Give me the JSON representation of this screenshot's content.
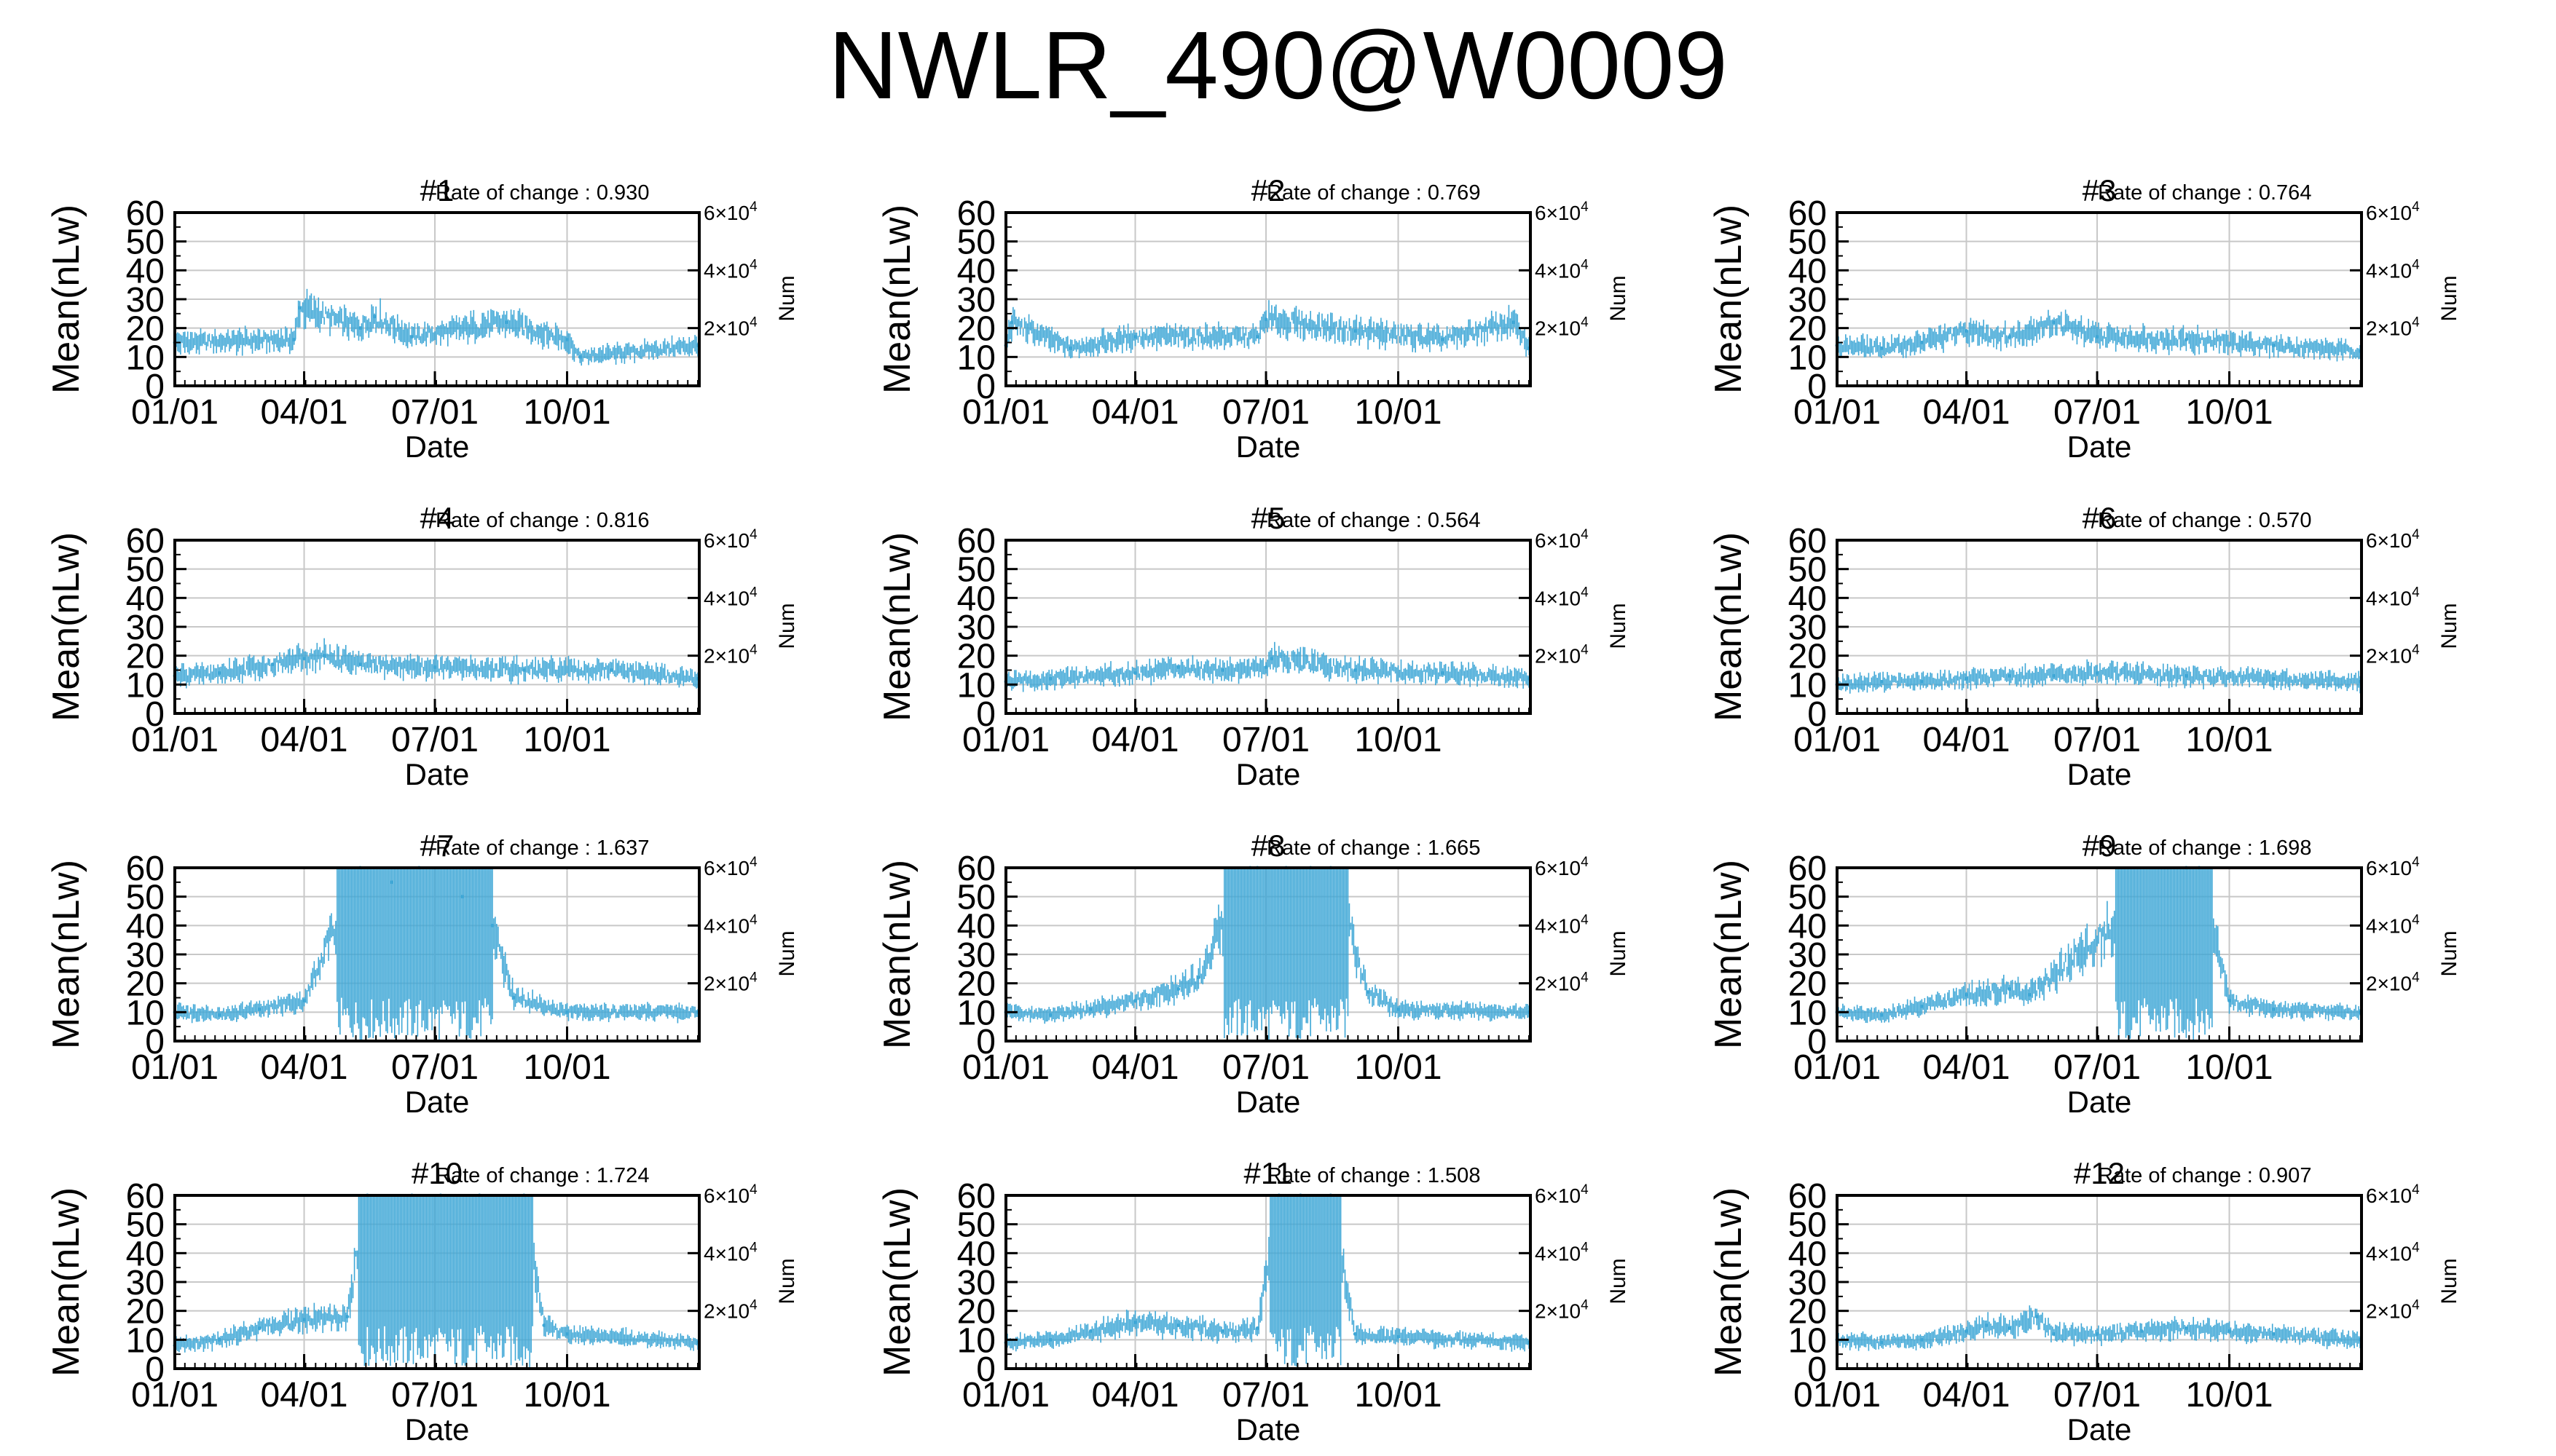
{
  "figure": {
    "title": "NWLR_490@W0009",
    "y_label": "Mean(nLw)",
    "x_label": "Date",
    "y2_label": "Num",
    "rate_prefix": "Rate of change : ",
    "y_ticks": [
      "0",
      "10",
      "20",
      "30",
      "40",
      "50",
      "60"
    ],
    "y2_ticks": [
      "2×10",
      "4×10",
      "6×10"
    ],
    "y2_tick_exp": "4",
    "x_ticks": [
      "01/01",
      "04/01",
      "07/01",
      "10/01"
    ],
    "line_color": "#3fa7d6",
    "grid_color": "#c8c8c8"
  },
  "chart_data": [
    {
      "type": "line",
      "title": "#1",
      "rate_of_change": "0.930",
      "x_range": [
        "01/01",
        "12/31"
      ],
      "ylim": [
        0,
        60
      ],
      "y2lim": [
        0,
        60000
      ],
      "grid": true,
      "series": [
        {
          "x": [
            "01/01",
            "03/25",
            "03/29",
            "05/10",
            "05/20",
            "06/15",
            "08/20",
            "10/01",
            "10/10",
            "12/31"
          ],
          "y": [
            15,
            16,
            27,
            20,
            24,
            17,
            22,
            16,
            10,
            14
          ]
        }
      ]
    },
    {
      "type": "line",
      "title": "#2",
      "rate_of_change": "0.769",
      "x_range": [
        "01/01",
        "12/31"
      ],
      "ylim": [
        0,
        60
      ],
      "y2lim": [
        0,
        60000
      ],
      "grid": true,
      "series": [
        {
          "x": [
            "01/01",
            "01/05",
            "02/15",
            "04/01",
            "06/25",
            "07/01",
            "09/01",
            "11/01",
            "12/20",
            "12/31"
          ],
          "y": [
            14,
            22,
            13,
            17,
            17,
            23,
            19,
            16,
            22,
            13
          ]
        }
      ]
    },
    {
      "type": "line",
      "title": "#3",
      "rate_of_change": "0.764",
      "x_range": [
        "01/01",
        "12/31"
      ],
      "ylim": [
        0,
        60
      ],
      "y2lim": [
        0,
        60000
      ],
      "grid": true,
      "series": [
        {
          "x": [
            "01/01",
            "02/01",
            "03/01",
            "04/01",
            "05/01",
            "06/01",
            "07/01",
            "09/01",
            "11/01",
            "12/31"
          ],
          "y": [
            14,
            13,
            15,
            19,
            17,
            22,
            17,
            16,
            14,
            12
          ]
        }
      ]
    },
    {
      "type": "line",
      "title": "#4",
      "rate_of_change": "0.816",
      "x_range": [
        "01/01",
        "12/31"
      ],
      "ylim": [
        0,
        60
      ],
      "y2lim": [
        0,
        60000
      ],
      "grid": true,
      "series": [
        {
          "x": [
            "01/01",
            "02/01",
            "03/10",
            "04/01",
            "04/15",
            "05/10",
            "07/01",
            "09/01",
            "11/01",
            "12/31"
          ],
          "y": [
            13,
            14,
            17,
            19,
            20,
            17,
            16,
            15,
            15,
            12
          ]
        }
      ]
    },
    {
      "type": "line",
      "title": "#5",
      "rate_of_change": "0.564",
      "x_range": [
        "01/01",
        "12/31"
      ],
      "ylim": [
        0,
        60
      ],
      "y2lim": [
        0,
        60000
      ],
      "grid": true,
      "series": [
        {
          "x": [
            "01/01",
            "02/01",
            "04/01",
            "05/01",
            "06/01",
            "07/01",
            "07/05",
            "09/01",
            "11/01",
            "12/31"
          ],
          "y": [
            11,
            12,
            14,
            16,
            15,
            16,
            19,
            15,
            14,
            12
          ]
        }
      ]
    },
    {
      "type": "line",
      "title": "#6",
      "rate_of_change": "0.570",
      "x_range": [
        "01/01",
        "12/31"
      ],
      "ylim": [
        0,
        60
      ],
      "y2lim": [
        0,
        60000
      ],
      "grid": true,
      "series": [
        {
          "x": [
            "01/01",
            "02/01",
            "03/01",
            "04/01",
            "05/01",
            "06/01",
            "07/01",
            "09/01",
            "11/01",
            "12/31"
          ],
          "y": [
            10,
            11,
            11,
            12,
            13,
            13,
            14,
            13,
            12,
            11
          ]
        }
      ]
    },
    {
      "type": "line",
      "title": "#7",
      "rate_of_change": "1.637",
      "x_range": [
        "01/01",
        "12/31"
      ],
      "ylim": [
        0,
        60
      ],
      "y2lim": [
        0,
        60000
      ],
      "grid": true,
      "series": [
        {
          "x": [
            "01/01",
            "02/01",
            "03/01",
            "04/01",
            "05/10",
            "06/01",
            "06/20",
            "07/20",
            "08/10",
            "08/25",
            "10/01",
            "12/31"
          ],
          "y": [
            10,
            9,
            11,
            14,
            60,
            55,
            60,
            50,
            40,
            15,
            10,
            10
          ]
        }
      ]
    },
    {
      "type": "line",
      "title": "#8",
      "rate_of_change": "1.665",
      "x_range": [
        "01/01",
        "12/31"
      ],
      "ylim": [
        0,
        60
      ],
      "y2lim": [
        0,
        60000
      ],
      "grid": true,
      "series": [
        {
          "x": [
            "01/01",
            "02/01",
            "03/01",
            "04/01",
            "05/01",
            "05/15",
            "06/20",
            "06/25",
            "07/15",
            "08/01",
            "08/15",
            "09/10",
            "10/01",
            "12/31"
          ],
          "y": [
            10,
            9,
            11,
            14,
            18,
            22,
            60,
            60,
            60,
            60,
            60,
            17,
            11,
            10
          ]
        }
      ]
    },
    {
      "type": "line",
      "title": "#9",
      "rate_of_change": "1.698",
      "x_range": [
        "01/01",
        "12/31"
      ],
      "ylim": [
        0,
        60
      ],
      "y2lim": [
        0,
        60000
      ],
      "grid": true,
      "series": [
        {
          "x": [
            "01/01",
            "02/01",
            "03/01",
            "04/01",
            "05/01",
            "05/15",
            "09/01",
            "09/10",
            "10/01",
            "11/01",
            "12/31"
          ],
          "y": [
            10,
            9,
            12,
            16,
            18,
            16,
            60,
            60,
            14,
            11,
            10
          ]
        }
      ]
    },
    {
      "type": "line",
      "title": "#10",
      "rate_of_change": "1.724",
      "x_range": [
        "01/01",
        "12/31"
      ],
      "ylim": [
        0,
        60
      ],
      "y2lim": [
        0,
        60000
      ],
      "grid": true,
      "series": [
        {
          "x": [
            "01/01",
            "02/01",
            "03/01",
            "04/01",
            "05/01",
            "05/15",
            "06/15",
            "07/05",
            "08/01",
            "09/01",
            "09/15",
            "10/01",
            "12/31"
          ],
          "y": [
            8,
            10,
            14,
            17,
            18,
            60,
            60,
            60,
            60,
            60,
            15,
            12,
            9
          ]
        }
      ]
    },
    {
      "type": "line",
      "title": "#11",
      "rate_of_change": "1.508",
      "x_range": [
        "01/01",
        "12/31"
      ],
      "ylim": [
        0,
        60
      ],
      "y2lim": [
        0,
        60000
      ],
      "grid": true,
      "series": [
        {
          "x": [
            "01/01",
            "02/01",
            "03/01",
            "04/01",
            "05/01",
            "06/01",
            "06/25",
            "07/10",
            "07/25",
            "08/15",
            "09/01",
            "10/01",
            "12/31"
          ],
          "y": [
            9,
            10,
            13,
            16,
            15,
            13,
            14,
            60,
            60,
            60,
            12,
            11,
            9
          ]
        }
      ]
    },
    {
      "type": "line",
      "title": "#12",
      "rate_of_change": "0.907",
      "x_range": [
        "01/01",
        "12/31"
      ],
      "ylim": [
        0,
        60
      ],
      "y2lim": [
        0,
        60000
      ],
      "grid": true,
      "series": [
        {
          "x": [
            "01/01",
            "02/01",
            "03/01",
            "04/01",
            "04/15",
            "05/01",
            "05/20",
            "06/01",
            "07/01",
            "08/01",
            "09/01",
            "10/01",
            "11/01",
            "12/31"
          ],
          "y": [
            10,
            9,
            10,
            13,
            15,
            14,
            18,
            12,
            12,
            13,
            14,
            13,
            12,
            10
          ]
        }
      ]
    }
  ]
}
